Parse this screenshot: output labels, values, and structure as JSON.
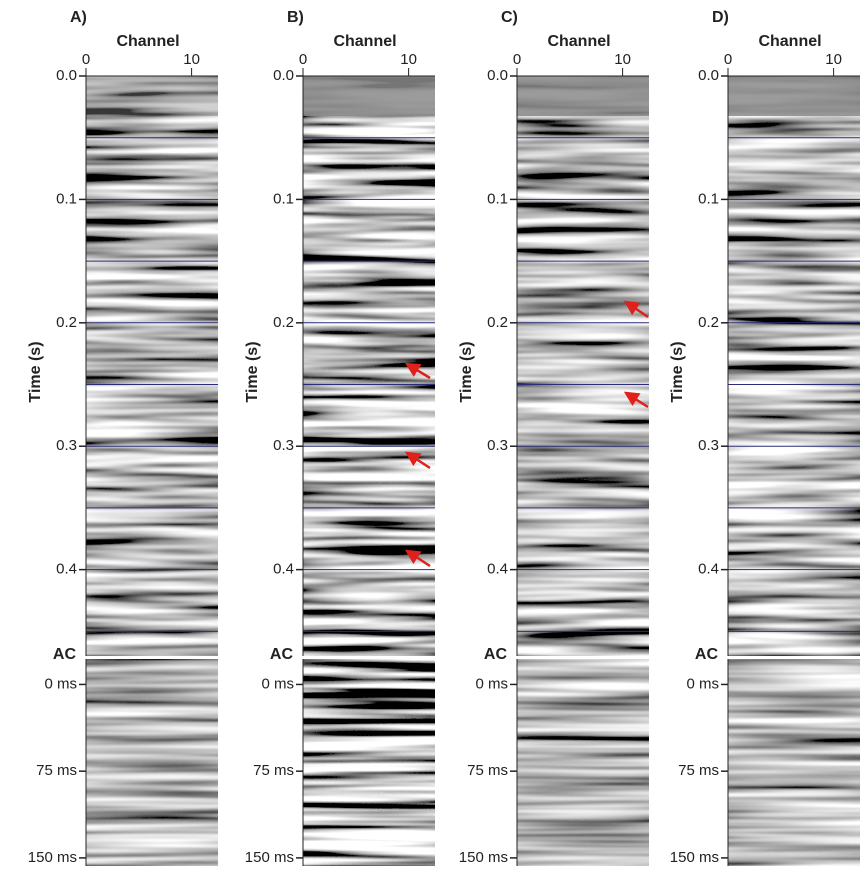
{
  "chart_data": [
    {
      "type": "image",
      "panel_label": "A)",
      "xlabel": "Channel",
      "xlim": [
        0,
        12.5
      ],
      "xticks": [
        0,
        10
      ],
      "ylabel": "Time (s)",
      "ylim": [
        0,
        0.47
      ],
      "yticks": [
        {
          "value": 0,
          "label": "0.0"
        },
        0.1,
        0.2,
        0.3,
        0.4
      ],
      "hlines": [
        0.05,
        0.1,
        0.15,
        0.2,
        0.25,
        0.3,
        0.35,
        0.4,
        0.45
      ],
      "ac_label": "AC",
      "ac_ylim": [
        -22,
        157
      ],
      "ac_yticks": [
        {
          "value": 0,
          "label": "0 ms"
        },
        {
          "value": 75,
          "label": "75 ms"
        },
        {
          "value": 150,
          "label": "150 ms"
        }
      ]
    },
    {
      "type": "image",
      "panel_label": "B)",
      "xlabel": "Channel",
      "xlim": [
        0,
        12.5
      ],
      "xticks": [
        0,
        10
      ],
      "ylabel": "Time (s)",
      "ylim": [
        0,
        0.47
      ],
      "yticks": [
        {
          "value": 0,
          "label": "0.0"
        },
        0.1,
        0.2,
        0.3,
        0.4
      ],
      "hlines": [
        0.05,
        0.1,
        0.15,
        0.2,
        0.25,
        0.3,
        0.35,
        0.4,
        0.45
      ],
      "ac_label": "AC",
      "ac_ylim": [
        -22,
        157
      ],
      "ac_yticks": [
        {
          "value": 0,
          "label": "0 ms"
        },
        {
          "value": 75,
          "label": "75 ms"
        },
        {
          "value": 150,
          "label": "150 ms"
        }
      ]
    },
    {
      "type": "image",
      "panel_label": "C)",
      "xlabel": "Channel",
      "xlim": [
        0,
        12.5
      ],
      "xticks": [
        0,
        10
      ],
      "ylabel": "Time (s)",
      "ylim": [
        0,
        0.47
      ],
      "yticks": [
        {
          "value": 0,
          "label": "0.0"
        },
        0.1,
        0.2,
        0.3,
        0.4
      ],
      "hlines": [
        0.05,
        0.1,
        0.15,
        0.2,
        0.25,
        0.3,
        0.35,
        0.4,
        0.45
      ],
      "ac_label": "AC",
      "ac_ylim": [
        -22,
        157
      ],
      "ac_yticks": [
        {
          "value": 0,
          "label": "0 ms"
        },
        {
          "value": 75,
          "label": "75 ms"
        },
        {
          "value": 150,
          "label": "150 ms"
        }
      ]
    },
    {
      "type": "image",
      "panel_label": "D)",
      "xlabel": "Channel",
      "xlim": [
        0,
        12.5
      ],
      "xticks": [
        0,
        10
      ],
      "ylabel": "Time (s)",
      "ylim": [
        0,
        0.47
      ],
      "yticks": [
        {
          "value": 0,
          "label": "0.0"
        },
        0.1,
        0.2,
        0.3,
        0.4
      ],
      "hlines": [
        0.05,
        0.1,
        0.15,
        0.2,
        0.25,
        0.3,
        0.35,
        0.4,
        0.45
      ],
      "ac_label": "AC",
      "ac_ylim": [
        -22,
        157
      ],
      "ac_yticks": [
        {
          "value": 0,
          "label": "0 ms"
        },
        {
          "value": 75,
          "label": "75 ms"
        },
        {
          "value": 150,
          "label": "150 ms"
        }
      ]
    }
  ]
}
